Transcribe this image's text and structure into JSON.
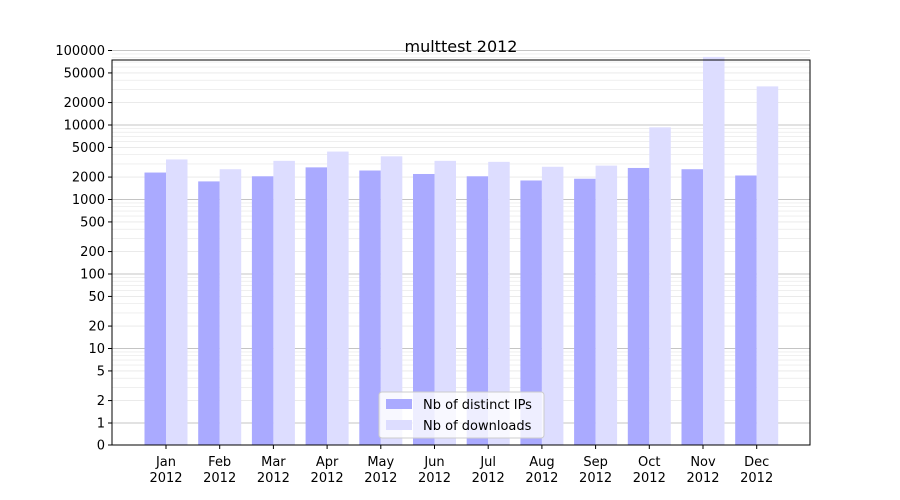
{
  "chart_data": {
    "type": "bar",
    "title": "multtest 2012",
    "xlabel": "",
    "ylabel": "",
    "yscale": "symlog",
    "ylim": [
      0,
      130000
    ],
    "yticks": [
      0,
      1,
      2,
      5,
      10,
      20,
      50,
      100,
      200,
      500,
      1000,
      2000,
      5000,
      10000,
      20000,
      50000,
      100000
    ],
    "ytick_labels": [
      "0",
      "1",
      "2",
      "5",
      "10",
      "20",
      "50",
      "100",
      "200",
      "500",
      "1000",
      "2000",
      "5000",
      "10000",
      "20000",
      "50000",
      "100000"
    ],
    "grid": true,
    "legend_position": "bottom-center",
    "categories": [
      "Jan\n2012",
      "Feb\n2012",
      "Mar\n2012",
      "Apr\n2012",
      "May\n2012",
      "Jun\n2012",
      "Jul\n2012",
      "Aug\n2012",
      "Sep\n2012",
      "Oct\n2012",
      "Nov\n2012",
      "Dec\n2012"
    ],
    "series": [
      {
        "name": "Nb of distinct IPs",
        "color": "#aaaaff",
        "values": [
          2300,
          1750,
          2050,
          2700,
          2450,
          2200,
          2050,
          1800,
          1900,
          2650,
          2550,
          2100
        ]
      },
      {
        "name": "Nb of downloads",
        "color": "#ddddff",
        "values": [
          3450,
          2550,
          3300,
          4400,
          3800,
          3300,
          3200,
          2750,
          2850,
          9300,
          82000,
          33000
        ]
      }
    ]
  }
}
